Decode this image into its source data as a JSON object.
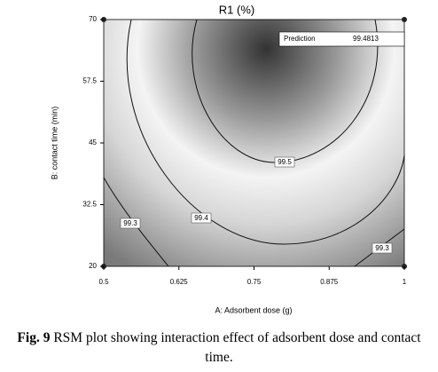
{
  "chart_data": {
    "type": "contour",
    "title": "R1 (%)",
    "x_label": "A: Adsorbent dose (g)",
    "y_label": "B: contact time (min)",
    "xlim": [
      0.5,
      1
    ],
    "ylim": [
      20,
      70
    ],
    "xticks": [
      0.5,
      0.625,
      0.75,
      0.875,
      1
    ],
    "yticks": [
      20,
      32.5,
      45,
      57.5,
      70
    ],
    "levels": [
      99.5,
      99.4,
      99.3,
      99.3
    ],
    "prediction": {
      "label": "Prediction",
      "value": 99.4813
    }
  },
  "caption": {
    "label": "Fig. 9",
    "text": "RSM plot showing interaction effect of adsorbent dose and contact time."
  }
}
